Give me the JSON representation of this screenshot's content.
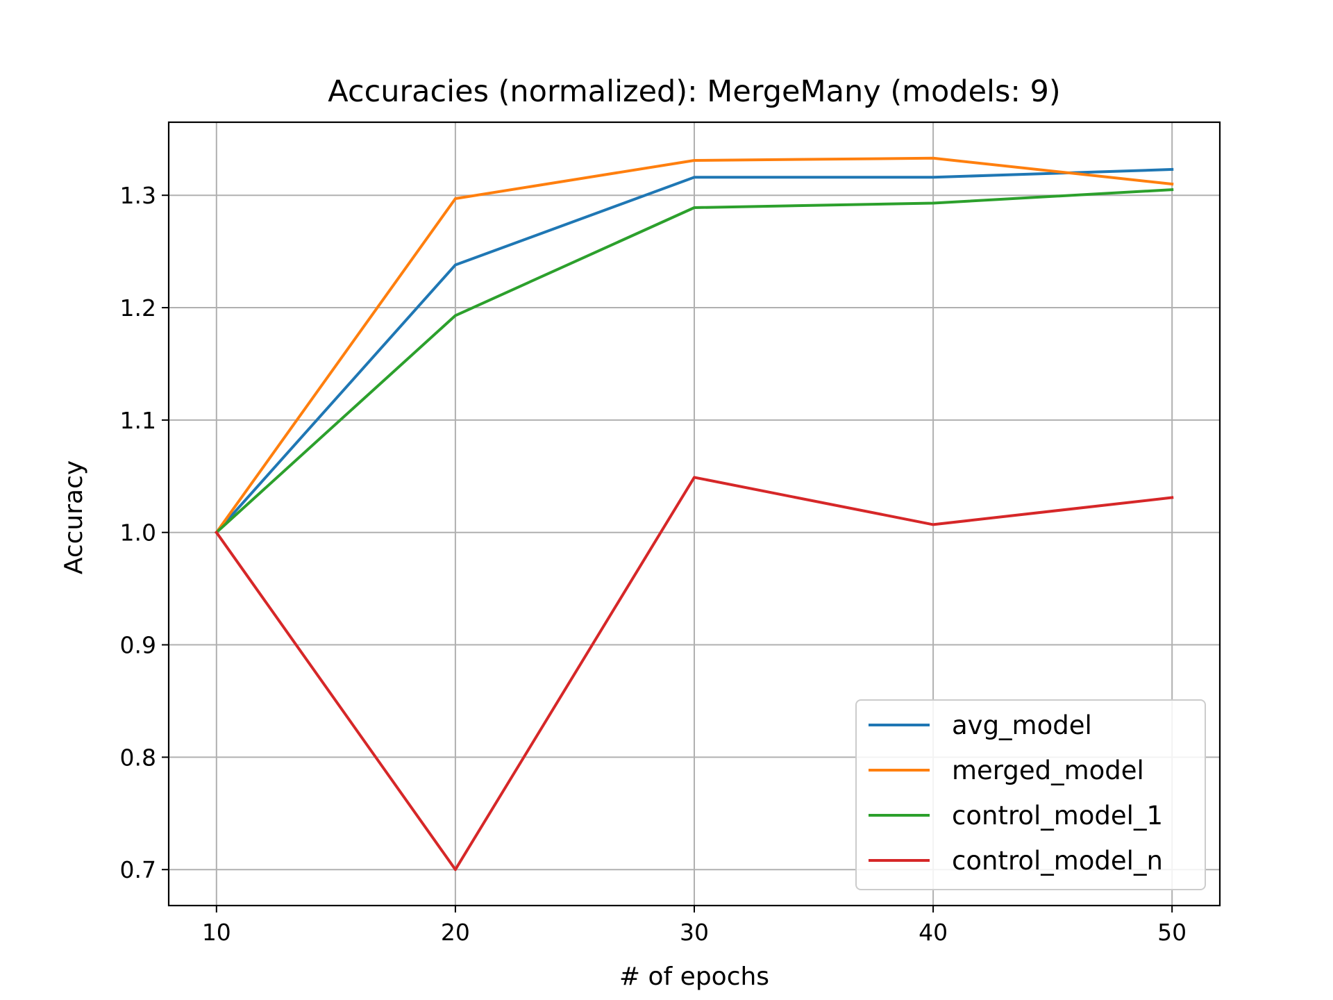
{
  "chart_data": {
    "type": "line",
    "title": "Accuracies (normalized): MergeMany (models: 9)",
    "xlabel": "# of epochs",
    "ylabel": "Accuracy",
    "x": [
      10,
      20,
      30,
      40,
      50
    ],
    "xticks": [
      10,
      20,
      30,
      40,
      50
    ],
    "yticks": [
      0.7,
      0.8,
      0.9,
      1.0,
      1.1,
      1.2,
      1.3
    ],
    "ytick_labels": [
      "0.7",
      "0.8",
      "0.9",
      "1.0",
      "1.1",
      "1.2",
      "1.3"
    ],
    "xlim": [
      8,
      52
    ],
    "ylim": [
      0.668,
      1.365
    ],
    "grid": true,
    "legend_position": "lower-right",
    "series": [
      {
        "name": "avg_model",
        "color": "#1f77b4",
        "values": [
          1.0,
          1.238,
          1.316,
          1.316,
          1.323
        ]
      },
      {
        "name": "merged_model",
        "color": "#ff7f0e",
        "values": [
          1.0,
          1.297,
          1.331,
          1.333,
          1.31
        ]
      },
      {
        "name": "control_model_1",
        "color": "#2ca02c",
        "values": [
          1.0,
          1.193,
          1.289,
          1.293,
          1.305
        ]
      },
      {
        "name": "control_model_n",
        "color": "#d62728",
        "values": [
          1.0,
          0.7,
          1.049,
          1.007,
          1.031
        ]
      }
    ]
  }
}
